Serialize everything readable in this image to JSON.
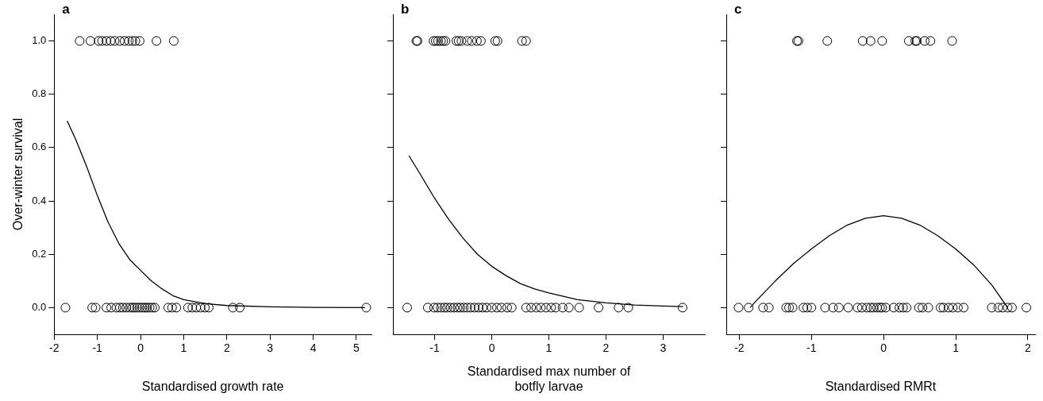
{
  "chart_data": [
    {
      "type": "scatter",
      "title": "a",
      "xlabel": "Standardised growth rate",
      "ylabel": "Over-winter survival",
      "xlim": [
        -2,
        5.35
      ],
      "xticks": [
        -2,
        -1,
        0,
        1,
        2,
        3,
        4,
        5
      ],
      "ylim": [
        -0.1,
        1.1
      ],
      "yticks": [
        {
          "value": 0,
          "label": "0.0"
        },
        {
          "value": 0.2,
          "label": "0.2"
        },
        {
          "value": 0.4,
          "label": "0.4"
        },
        {
          "value": 0.6,
          "label": "0.6"
        },
        {
          "value": 0.8,
          "label": "0.8"
        },
        {
          "value": 1,
          "label": "1.0"
        }
      ],
      "grid": false,
      "legend": false,
      "marker": "circle",
      "series": [
        {
          "color": "#000000",
          "x": [
            -1.41,
            -1.16,
            -0.97,
            -0.89,
            -0.79,
            -0.69,
            -0.6,
            -0.48,
            -0.37,
            -0.27,
            -0.19,
            -0.12,
            -0.02,
            0.37,
            0.77,
            -1.74,
            -1.12,
            -1.04,
            -0.79,
            -0.68,
            -0.56,
            -0.48,
            -0.41,
            -0.33,
            -0.25,
            -0.19,
            -0.14,
            -0.08,
            -0.02,
            0.04,
            0.1,
            0.15,
            0.21,
            0.27,
            0.33,
            0.64,
            0.73,
            0.83,
            1.1,
            1.2,
            1.29,
            1.39,
            1.49,
            1.58,
            2.14,
            2.3
          ],
          "values": [
            1,
            1,
            1,
            1,
            1,
            1,
            1,
            1,
            1,
            1,
            1,
            1,
            1,
            1,
            1,
            0,
            0,
            0,
            0,
            0,
            0,
            0,
            0,
            0,
            0,
            0,
            0,
            0,
            0,
            0,
            0,
            0,
            0,
            0,
            0,
            0,
            0,
            0,
            0,
            0,
            0,
            0,
            0,
            0,
            0,
            0
          ]
        },
        {
          "color": "#000000",
          "marker": "circle",
          "x": [
            5.23
          ],
          "values": [
            0
          ]
        },
        {
          "type": "line",
          "marker": "none",
          "color": "#000000",
          "x": [
            -1.7,
            -1.5,
            -1.25,
            -1,
            -0.75,
            -0.5,
            -0.25,
            0,
            0.25,
            0.5,
            0.75,
            1,
            1.5,
            2,
            3,
            4,
            5.2
          ],
          "values": [
            0.7,
            0.63,
            0.53,
            0.42,
            0.32,
            0.24,
            0.18,
            0.14,
            0.1,
            0.07,
            0.045,
            0.03,
            0.015,
            0.008,
            0.003,
            0.001,
            0
          ]
        }
      ]
    },
    {
      "type": "scatter",
      "title": "b",
      "xlabel": "Standardised max number of botfly larvae",
      "xlim": [
        -1.73,
        3.73
      ],
      "xticks": [
        -1,
        0,
        1,
        2,
        3
      ],
      "ylim": [
        -0.1,
        1.1
      ],
      "yticks": [
        0,
        0.2,
        0.4,
        0.6,
        0.8,
        1
      ],
      "tick_labels": "x",
      "grid": false,
      "legend": false,
      "marker": "circle",
      "series": [
        {
          "color": "#000000",
          "x": [
            -1.32,
            -1.3,
            -1.02,
            -0.98,
            -0.94,
            -0.89,
            -0.85,
            -0.81,
            -0.62,
            -0.58,
            -0.53,
            -0.43,
            -0.35,
            -0.26,
            -0.19,
            0.06,
            0.1,
            0.53,
            0.6,
            -1.48,
            -1.12,
            -1.01,
            -0.95,
            -0.89,
            -0.83,
            -0.78,
            -0.72,
            -0.66,
            -0.6,
            -0.55,
            -0.49,
            -0.43,
            -0.37,
            -0.3,
            -0.23,
            -0.16,
            -0.09,
            0,
            0.09,
            0.17,
            0.27,
            0.35,
            0.6,
            0.69,
            0.78,
            0.86,
            0.95,
            1.04,
            1.12,
            1.24,
            1.35,
            1.53,
            1.87,
            2.22,
            2.39,
            3.34
          ],
          "values": [
            1,
            1,
            1,
            1,
            1,
            1,
            1,
            1,
            1,
            1,
            1,
            1,
            1,
            1,
            1,
            1,
            1,
            1,
            1,
            0,
            0,
            0,
            0,
            0,
            0,
            0,
            0,
            0,
            0,
            0,
            0,
            0,
            0,
            0,
            0,
            0,
            0,
            0,
            0,
            0,
            0,
            0,
            0,
            0,
            0,
            0,
            0,
            0,
            0,
            0,
            0,
            0,
            0,
            0,
            0,
            0
          ]
        },
        {
          "type": "line",
          "marker": "none",
          "color": "#000000",
          "x": [
            -1.45,
            -1.25,
            -1,
            -0.75,
            -0.5,
            -0.25,
            0,
            0.25,
            0.5,
            0.75,
            1,
            1.5,
            2,
            2.5,
            3,
            3.35
          ],
          "values": [
            0.57,
            0.5,
            0.41,
            0.33,
            0.26,
            0.2,
            0.155,
            0.12,
            0.09,
            0.07,
            0.055,
            0.03,
            0.018,
            0.01,
            0.006,
            0.004
          ]
        }
      ]
    },
    {
      "type": "scatter",
      "title": "c",
      "xlabel": "Standardised RMRt",
      "xlim": [
        -2.18,
        2.1
      ],
      "xticks": [
        -2,
        -1,
        0,
        1,
        2
      ],
      "ylim": [
        -0.1,
        1.1
      ],
      "yticks": [
        0,
        0.2,
        0.4,
        0.6,
        0.8,
        1
      ],
      "tick_labels": "x",
      "grid": false,
      "legend": false,
      "marker": "circle",
      "series": [
        {
          "color": "#000000",
          "x": [
            -1.2,
            -1.18,
            -0.78,
            -0.29,
            -0.18,
            -0.02,
            0.35,
            0.44,
            0.46,
            0.57,
            0.65,
            0.95,
            -2.01,
            -1.87,
            -1.67,
            -1.59,
            -1.35,
            -1.31,
            -1.26,
            -1.11,
            -1.06,
            -1,
            -0.81,
            -0.7,
            -0.62,
            -0.49,
            -0.36,
            -0.3,
            -0.23,
            -0.18,
            -0.14,
            -0.09,
            -0.05,
            -0.02,
            0.03,
            0.14,
            0.22,
            0.27,
            0.32,
            0.49,
            0.54,
            0.62,
            0.79,
            0.83,
            0.9,
            0.96,
            1.03,
            1.11,
            1.5,
            1.59,
            1.65,
            1.72,
            1.78,
            1.98
          ],
          "values": [
            1,
            1,
            1,
            1,
            1,
            1,
            1,
            1,
            1,
            1,
            1,
            1,
            0,
            0,
            0,
            0,
            0,
            0,
            0,
            0,
            0,
            0,
            0,
            0,
            0,
            0,
            0,
            0,
            0,
            0,
            0,
            0,
            0,
            0,
            0,
            0,
            0,
            0,
            0,
            0,
            0,
            0,
            0,
            0,
            0,
            0,
            0,
            0,
            0,
            0,
            0,
            0,
            0,
            0
          ]
        },
        {
          "type": "line",
          "marker": "none",
          "color": "#000000",
          "x": [
            -1.85,
            -1.75,
            -1.5,
            -1.25,
            -1,
            -0.75,
            -0.5,
            -0.25,
            0,
            0.25,
            0.5,
            0.75,
            1,
            1.25,
            1.5,
            1.72
          ],
          "values": [
            0,
            0.03,
            0.1,
            0.165,
            0.22,
            0.27,
            0.31,
            0.335,
            0.345,
            0.335,
            0.31,
            0.27,
            0.22,
            0.16,
            0.085,
            0
          ]
        }
      ]
    }
  ]
}
